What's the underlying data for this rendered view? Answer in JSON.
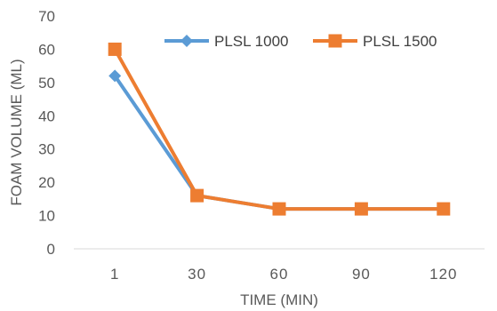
{
  "chart_data": {
    "type": "line",
    "title": "",
    "xlabel": "TIME (MIN)",
    "ylabel": "FOAM VOLUME (ML)",
    "categories": [
      "1",
      "30",
      "60",
      "90",
      "120"
    ],
    "ylim": [
      0,
      70
    ],
    "yticks": [
      "0",
      "10",
      "20",
      "30",
      "40",
      "50",
      "60",
      "70"
    ],
    "grid": false,
    "legend_position": "top-right",
    "series": [
      {
        "name": "PLSL 1000",
        "values": [
          52,
          16,
          12,
          12,
          12
        ],
        "color": "#5B9BD5",
        "marker": "diamond"
      },
      {
        "name": "PLSL 1500",
        "values": [
          60,
          16,
          12,
          12,
          12
        ],
        "color": "#ED7D31",
        "marker": "square"
      }
    ]
  }
}
